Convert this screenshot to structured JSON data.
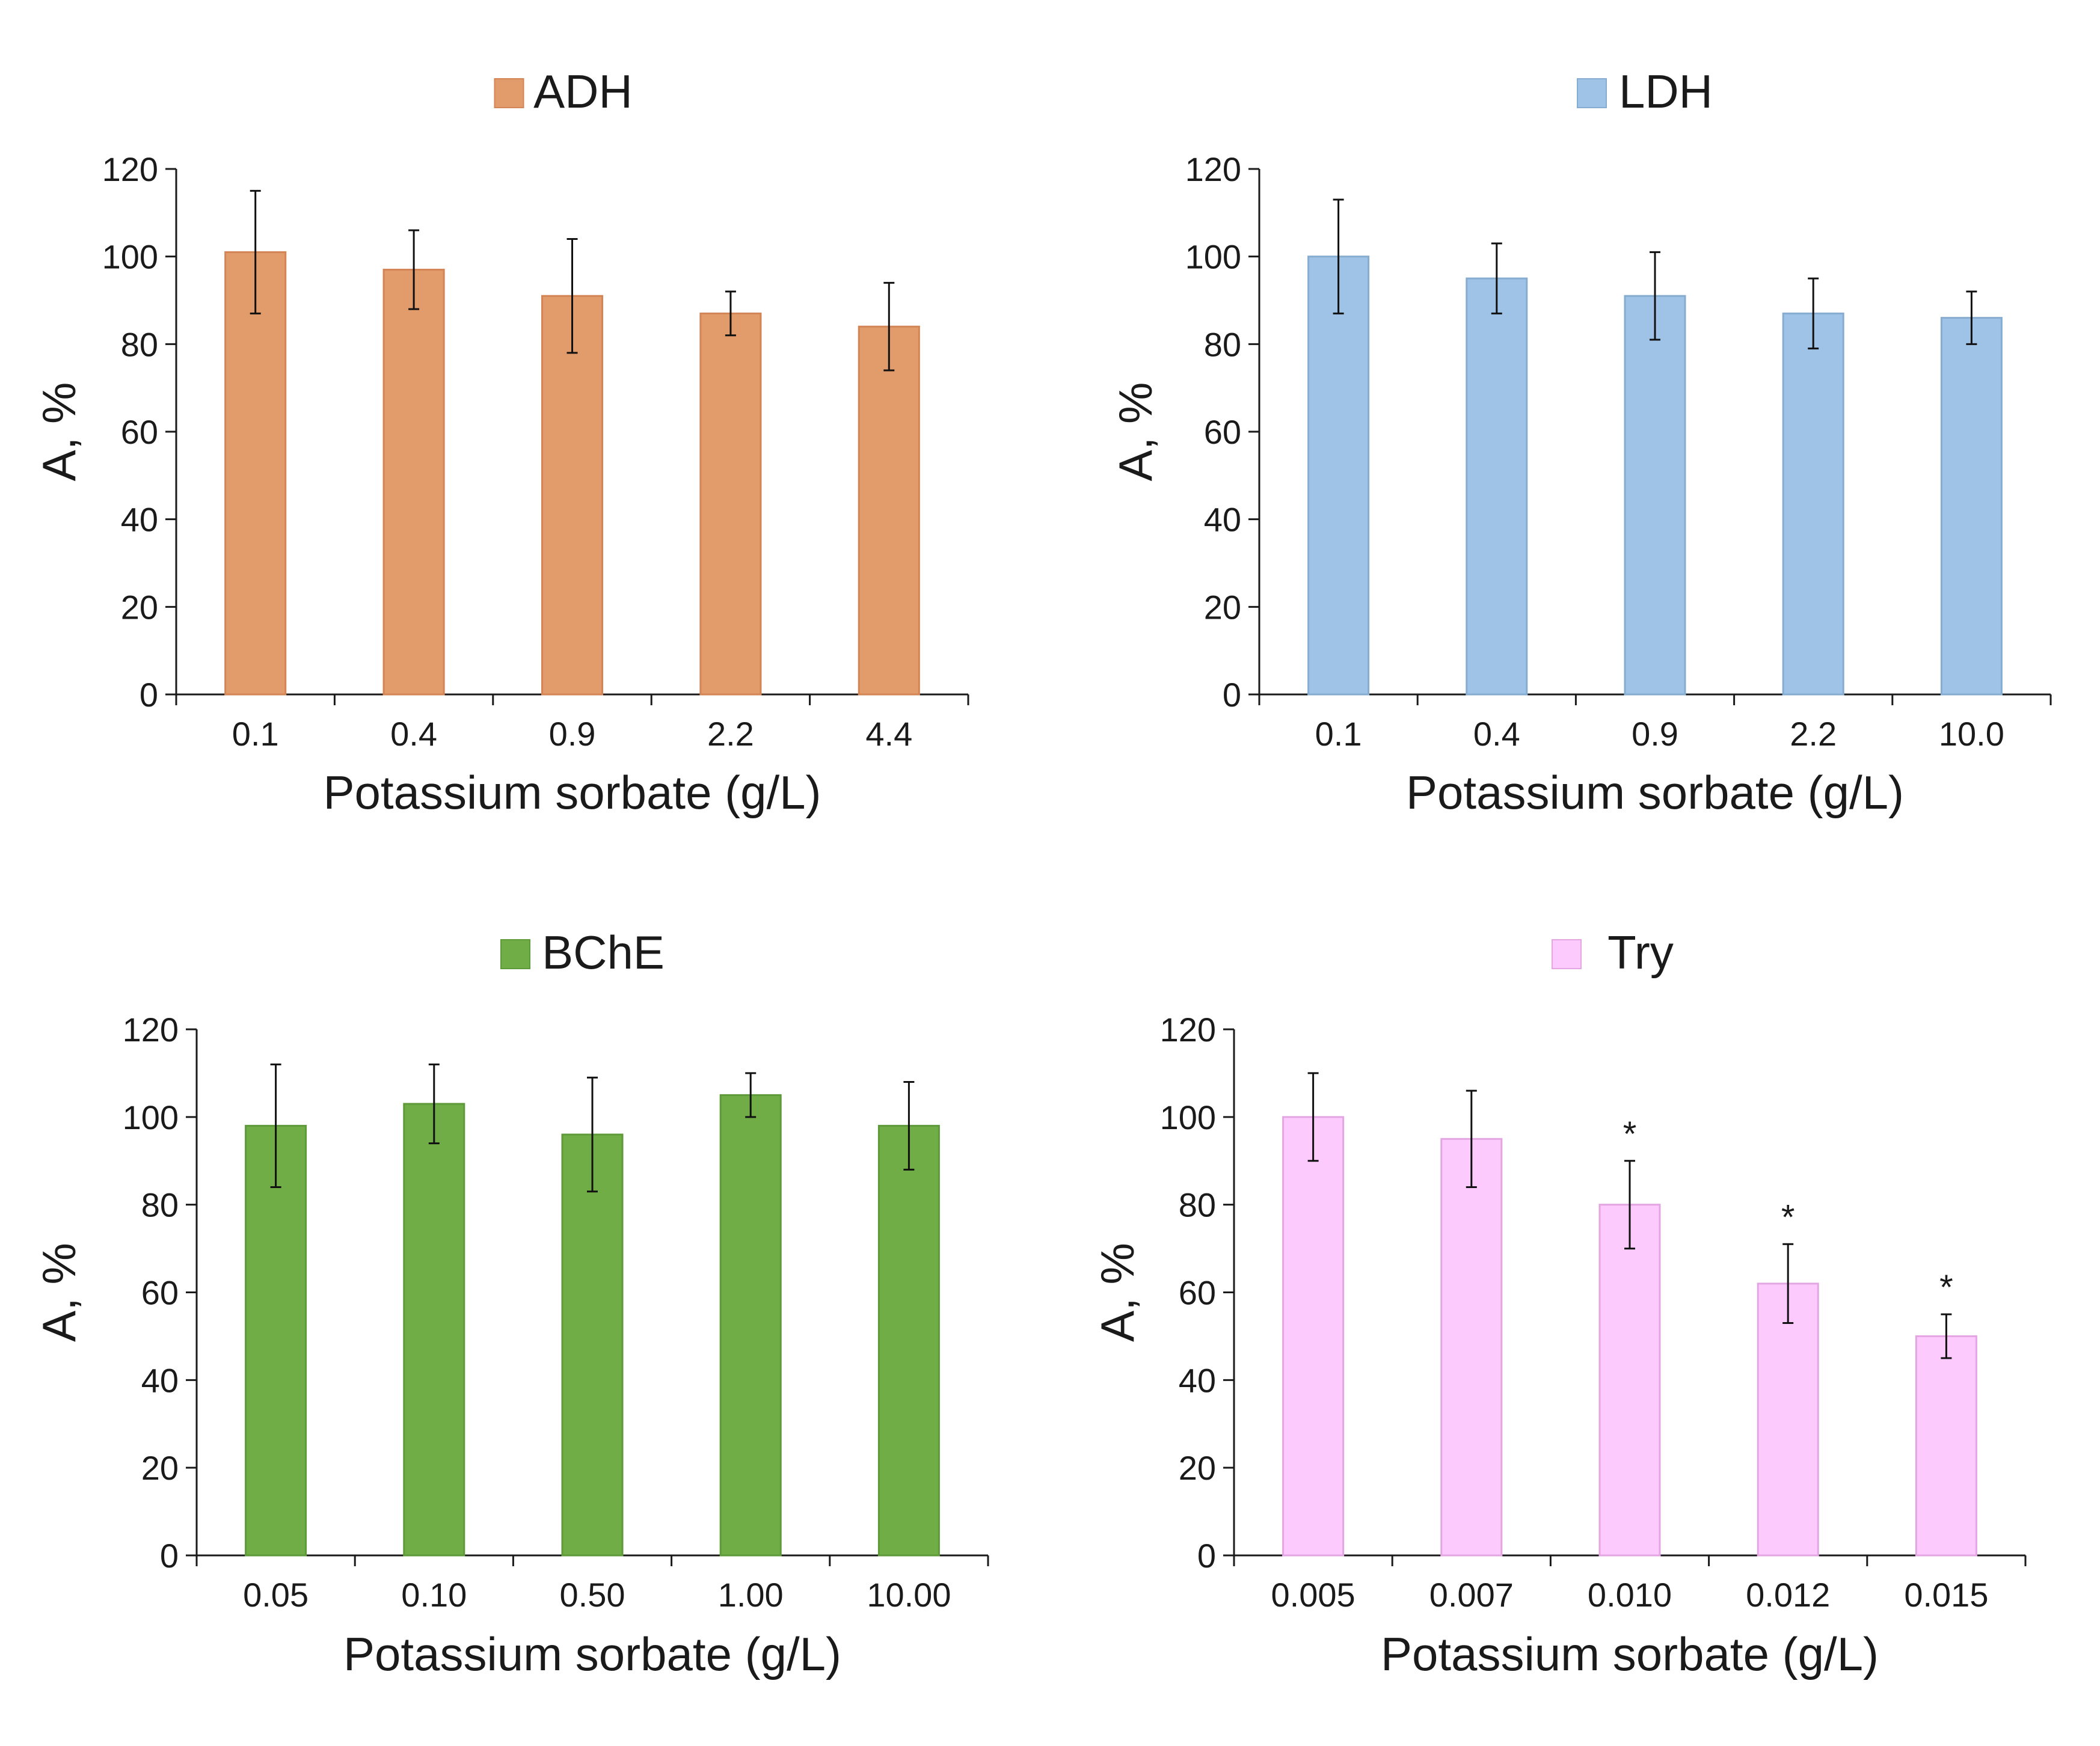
{
  "chart_data": [
    {
      "type": "bar",
      "legend": "ADH",
      "legend_position": "top-center",
      "color": "#E29B6B",
      "edge_color": "#D38556",
      "xlabel": "Potassium sorbate (g/L)",
      "ylabel": "A, %",
      "ylim": [
        0,
        120
      ],
      "yticks": [
        "0",
        "20",
        "40",
        "60",
        "80",
        "100",
        "120"
      ],
      "categories": [
        "0.1",
        "0.4",
        "0.9",
        "2.2",
        "4.4"
      ],
      "values": [
        101,
        97,
        91,
        87,
        84
      ],
      "errors": [
        14,
        9,
        13,
        5,
        10
      ],
      "markers": [
        "",
        "",
        "",
        "",
        ""
      ]
    },
    {
      "type": "bar",
      "legend": "LDH",
      "legend_position": "top-center",
      "color": "#9EC3E6",
      "edge_color": "#86ACD0",
      "xlabel": "Potassium sorbate (g/L)",
      "ylabel": "A, %",
      "ylim": [
        0,
        120
      ],
      "yticks": [
        "0",
        "20",
        "40",
        "60",
        "80",
        "100",
        "120"
      ],
      "categories": [
        "0.1",
        "0.4",
        "0.9",
        "2.2",
        "10.0"
      ],
      "values": [
        100,
        95,
        91,
        87,
        86
      ],
      "errors": [
        13,
        8,
        10,
        8,
        6
      ],
      "markers": [
        "",
        "",
        "",
        "",
        ""
      ]
    },
    {
      "type": "bar",
      "legend": "BChE",
      "legend_position": "top-center",
      "color": "#70AD47",
      "edge_color": "#5E9A3A",
      "xlabel": "Potassium sorbate (g/L)",
      "ylabel": "A, %",
      "ylim": [
        0,
        120
      ],
      "yticks": [
        "0",
        "20",
        "40",
        "60",
        "80",
        "100",
        "120"
      ],
      "categories": [
        "0.05",
        "0.10",
        "0.50",
        "1.00",
        "10.00"
      ],
      "values": [
        98,
        103,
        96,
        105,
        98
      ],
      "errors": [
        14,
        9,
        13,
        5,
        10
      ],
      "markers": [
        "",
        "",
        "",
        "",
        ""
      ]
    },
    {
      "type": "bar",
      "legend": "Try",
      "legend_position": "top-center",
      "color": "#FCCAFC",
      "edge_color": "#E3A6E3",
      "xlabel": "Potassium sorbate (g/L)",
      "ylabel": "A, %",
      "ylim": [
        0,
        120
      ],
      "yticks": [
        "0",
        "20",
        "40",
        "60",
        "80",
        "100",
        "120"
      ],
      "categories": [
        "0.005",
        "0.007",
        "0.010",
        "0.012",
        "0.015"
      ],
      "values": [
        100,
        95,
        80,
        62,
        50
      ],
      "errors": [
        10,
        11,
        10,
        9,
        5
      ],
      "markers": [
        "",
        "",
        "*",
        "*",
        "*"
      ]
    }
  ]
}
